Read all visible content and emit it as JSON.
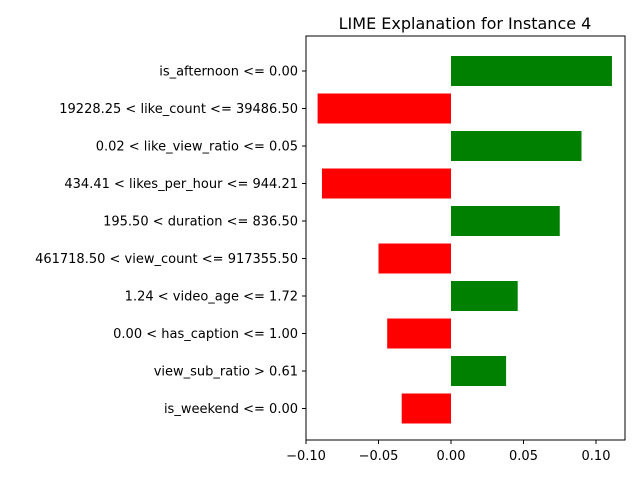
{
  "chart_data": {
    "type": "bar",
    "orientation": "horizontal",
    "title": "LIME Explanation for Instance 4",
    "xlabel": "",
    "ylabel": "",
    "xlim": [
      -0.1,
      0.12
    ],
    "xticks": [
      -0.1,
      -0.05,
      0.0,
      0.05,
      0.1
    ],
    "xtick_labels": [
      "−0.10",
      "−0.05",
      "0.00",
      "0.05",
      "0.10"
    ],
    "categories": [
      "is_afternoon <= 0.00",
      "19228.25 < like_count <= 39486.50",
      "0.02 < like_view_ratio <= 0.05",
      "434.41 < likes_per_hour <= 944.21",
      "195.50 < duration <= 836.50",
      "461718.50 < view_count <= 917355.50",
      "1.24 < video_age <= 1.72",
      "0.00 < has_caption <= 1.00",
      "view_sub_ratio > 0.61",
      "is_weekend <= 0.00"
    ],
    "values": [
      0.111,
      -0.092,
      0.09,
      -0.089,
      0.075,
      -0.05,
      0.046,
      -0.044,
      0.038,
      -0.034
    ],
    "colors": {
      "positive": "#008000",
      "negative": "#ff0000"
    },
    "grid": false,
    "legend": "none"
  }
}
